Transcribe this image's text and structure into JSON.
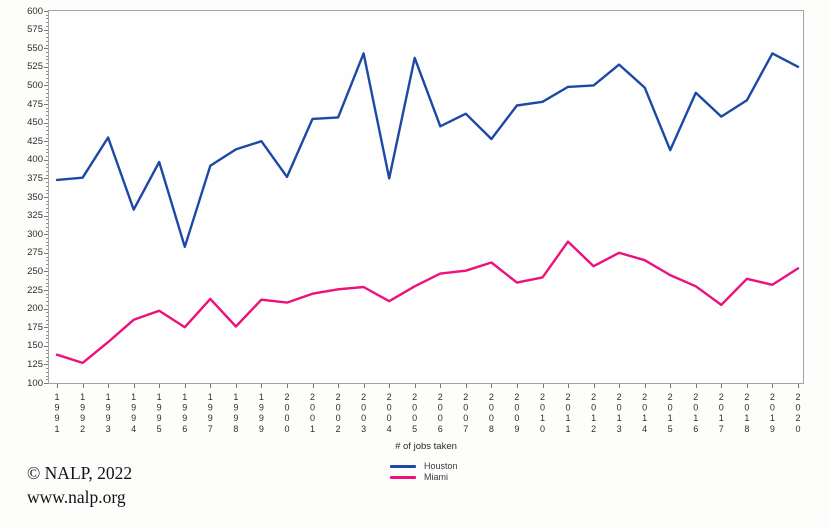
{
  "chart_data": {
    "type": "line",
    "title": "",
    "xlabel": "# of jobs taken",
    "ylabel": "",
    "x": [
      "1991",
      "1992",
      "1993",
      "1994",
      "1995",
      "1996",
      "1997",
      "1998",
      "1999",
      "2000",
      "2001",
      "2002",
      "2003",
      "2004",
      "2005",
      "2006",
      "2007",
      "2008",
      "2009",
      "2010",
      "2011",
      "2012",
      "2013",
      "2014",
      "2015",
      "2016",
      "2017",
      "2018",
      "2019",
      "2020"
    ],
    "ylim": [
      100,
      600
    ],
    "y_tick_labels": [
      100,
      125,
      150,
      175,
      200,
      225,
      250,
      275,
      300,
      325,
      350,
      375,
      400,
      425,
      450,
      475,
      500,
      525,
      550,
      575,
      600
    ],
    "y_minor_tick_step": 5,
    "grid": false,
    "legend_position": "bottom-center",
    "series": [
      {
        "name": "Houston",
        "color": "#1c49a4",
        "values": [
          373,
          376,
          430,
          333,
          397,
          283,
          392,
          414,
          425,
          377,
          455,
          457,
          543,
          375,
          537,
          445,
          462,
          428,
          473,
          478,
          498,
          500,
          528,
          497,
          413,
          490,
          458,
          480,
          543,
          525
        ]
      },
      {
        "name": "Miami",
        "color": "#ec117b",
        "values": [
          138,
          127,
          155,
          185,
          197,
          175,
          213,
          176,
          212,
          208,
          220,
          226,
          229,
          210,
          230,
          247,
          251,
          262,
          235,
          242,
          290,
          257,
          275,
          265,
          245,
          230,
          205,
          240,
          232,
          254
        ]
      }
    ]
  },
  "footer": {
    "copyright": "© NALP, 2022",
    "website": "www.nalp.org"
  },
  "colors": {
    "frame": "#a3a3a3",
    "tick": "#787878",
    "label_text": "#2d2d2d"
  }
}
